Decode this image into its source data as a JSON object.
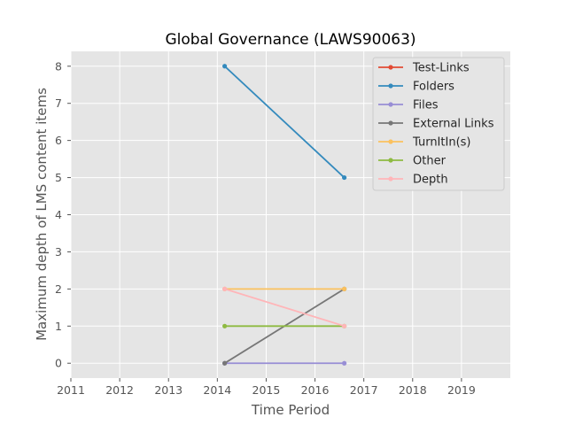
{
  "chart_data": {
    "type": "line",
    "title": "Global Governance (LAWS90063)",
    "xlabel": "Time Period",
    "ylabel": "Maximum depth of LMS content items",
    "x": [
      2014.15,
      2016.6
    ],
    "xlim": [
      2011,
      2020
    ],
    "ylim": [
      -0.4,
      8.4
    ],
    "xticks": [
      "2011",
      "2012",
      "2013",
      "2014",
      "2015",
      "2016",
      "2017",
      "2018",
      "2019"
    ],
    "yticks": [
      "0",
      "1",
      "2",
      "3",
      "4",
      "5",
      "6",
      "7",
      "8"
    ],
    "grid": true,
    "legend_position": "top-right",
    "series": [
      {
        "name": "Test-Links",
        "color": "#e24a33",
        "values": [
          null,
          null
        ]
      },
      {
        "name": "Folders",
        "color": "#348abd",
        "values": [
          8,
          5
        ]
      },
      {
        "name": "Files",
        "color": "#988ed5",
        "values": [
          0,
          0
        ]
      },
      {
        "name": "External Links",
        "color": "#777777",
        "values": [
          0,
          2
        ]
      },
      {
        "name": "TurnItIn(s)",
        "color": "#fbc15e",
        "values": [
          2,
          2
        ]
      },
      {
        "name": "Other",
        "color": "#8eba42",
        "values": [
          1,
          1
        ]
      },
      {
        "name": "Depth",
        "color": "#ffb5b8",
        "values": [
          2,
          1
        ]
      }
    ]
  }
}
